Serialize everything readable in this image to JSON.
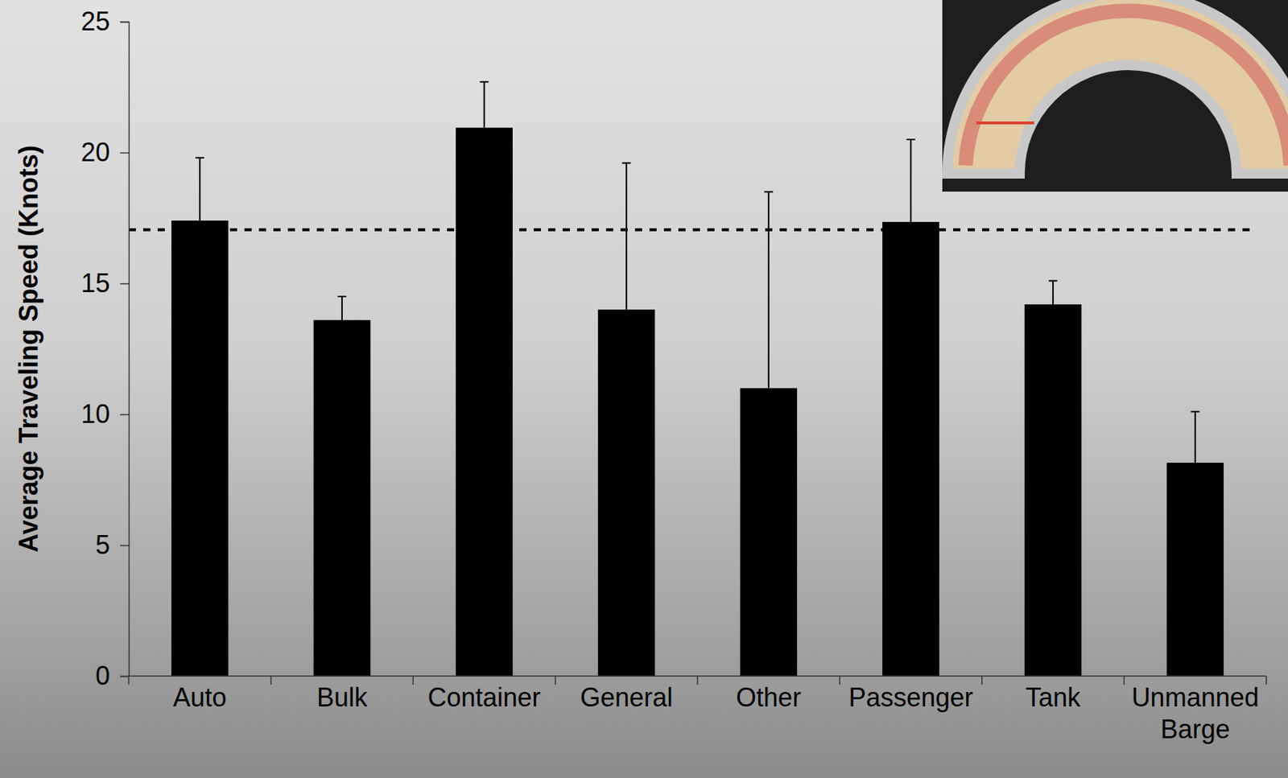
{
  "chart_data": {
    "type": "bar",
    "y_label": "Average Traveling Speed (Knots)",
    "categories": [
      "Auto",
      "Bulk",
      "Container",
      "General",
      "Other",
      "Passenger",
      "Tank",
      "Unmanned Barge"
    ],
    "values": [
      17.4,
      13.6,
      20.95,
      14.0,
      11.0,
      17.35,
      14.2,
      8.15
    ],
    "errors": [
      2.4,
      0.9,
      1.75,
      5.6,
      7.5,
      3.15,
      0.9,
      1.95
    ],
    "color": "#000000",
    "ylim": [
      0,
      25
    ],
    "yticks": [
      0,
      5,
      10,
      15,
      20,
      25
    ],
    "reference_line": 17.05,
    "grid": false
  }
}
